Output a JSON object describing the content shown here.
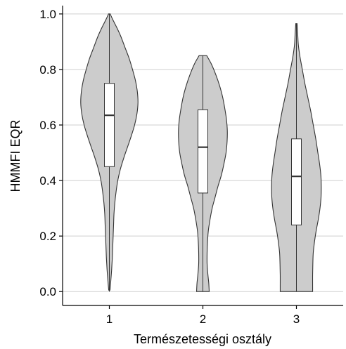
{
  "chart_data": {
    "type": "violin",
    "xlabel": "Természetességi osztály",
    "ylabel": "HMMFI EQR",
    "categories": [
      "1",
      "2",
      "3"
    ],
    "ylim": [
      -0.05,
      1.03
    ],
    "yticks": [
      0.0,
      0.2,
      0.4,
      0.6,
      0.8,
      1.0
    ],
    "ytick_labels": [
      "0.0",
      "0.2",
      "0.4",
      "0.6",
      "0.8",
      "1.0"
    ],
    "grid": "horizontal",
    "violins": [
      {
        "category": "1",
        "min": 0.0,
        "max": 1.0,
        "q1": 0.45,
        "median": 0.635,
        "q3": 0.75,
        "density": [
          [
            1.0,
            0.02
          ],
          [
            0.98,
            0.08
          ],
          [
            0.95,
            0.18
          ],
          [
            0.92,
            0.27
          ],
          [
            0.88,
            0.37
          ],
          [
            0.84,
            0.47
          ],
          [
            0.8,
            0.55
          ],
          [
            0.76,
            0.62
          ],
          [
            0.72,
            0.665
          ],
          [
            0.68,
            0.68
          ],
          [
            0.64,
            0.655
          ],
          [
            0.6,
            0.6
          ],
          [
            0.56,
            0.52
          ],
          [
            0.52,
            0.43
          ],
          [
            0.48,
            0.34
          ],
          [
            0.44,
            0.26
          ],
          [
            0.4,
            0.2
          ],
          [
            0.36,
            0.16
          ],
          [
            0.32,
            0.13
          ],
          [
            0.28,
            0.11
          ],
          [
            0.24,
            0.1
          ],
          [
            0.2,
            0.09
          ],
          [
            0.16,
            0.08
          ],
          [
            0.12,
            0.07
          ],
          [
            0.08,
            0.055
          ],
          [
            0.04,
            0.035
          ],
          [
            0.005,
            0.015
          ]
        ]
      },
      {
        "category": "2",
        "min": 0.0,
        "max": 0.85,
        "q1": 0.355,
        "median": 0.52,
        "q3": 0.655,
        "density": [
          [
            0.85,
            0.09
          ],
          [
            0.82,
            0.2
          ],
          [
            0.78,
            0.31
          ],
          [
            0.74,
            0.4
          ],
          [
            0.7,
            0.47
          ],
          [
            0.66,
            0.52
          ],
          [
            0.62,
            0.56
          ],
          [
            0.58,
            0.58
          ],
          [
            0.54,
            0.575
          ],
          [
            0.5,
            0.55
          ],
          [
            0.46,
            0.5
          ],
          [
            0.42,
            0.44
          ],
          [
            0.38,
            0.36
          ],
          [
            0.34,
            0.29
          ],
          [
            0.3,
            0.22
          ],
          [
            0.26,
            0.17
          ],
          [
            0.22,
            0.13
          ],
          [
            0.18,
            0.11
          ],
          [
            0.14,
            0.1
          ],
          [
            0.1,
            0.1
          ],
          [
            0.06,
            0.12
          ],
          [
            0.03,
            0.14
          ],
          [
            0.0,
            0.15
          ]
        ]
      },
      {
        "category": "3",
        "min": 0.0,
        "max": 0.965,
        "q1": 0.24,
        "median": 0.415,
        "q3": 0.55,
        "density": [
          [
            0.965,
            0.015
          ],
          [
            0.93,
            0.03
          ],
          [
            0.89,
            0.045
          ],
          [
            0.85,
            0.08
          ],
          [
            0.8,
            0.14
          ],
          [
            0.75,
            0.2
          ],
          [
            0.7,
            0.27
          ],
          [
            0.65,
            0.34
          ],
          [
            0.6,
            0.4
          ],
          [
            0.55,
            0.46
          ],
          [
            0.5,
            0.51
          ],
          [
            0.46,
            0.55
          ],
          [
            0.42,
            0.58
          ],
          [
            0.38,
            0.59
          ],
          [
            0.34,
            0.585
          ],
          [
            0.3,
            0.56
          ],
          [
            0.26,
            0.52
          ],
          [
            0.22,
            0.47
          ],
          [
            0.18,
            0.43
          ],
          [
            0.14,
            0.4
          ],
          [
            0.1,
            0.39
          ],
          [
            0.06,
            0.385
          ],
          [
            0.02,
            0.385
          ],
          [
            0.0,
            0.385
          ]
        ]
      }
    ],
    "colors": {
      "violin_fill": "#cccccc",
      "violin_stroke": "#333333",
      "box_fill": "#ffffff",
      "grid": "#cfcfcf",
      "axis": "#000000"
    }
  }
}
